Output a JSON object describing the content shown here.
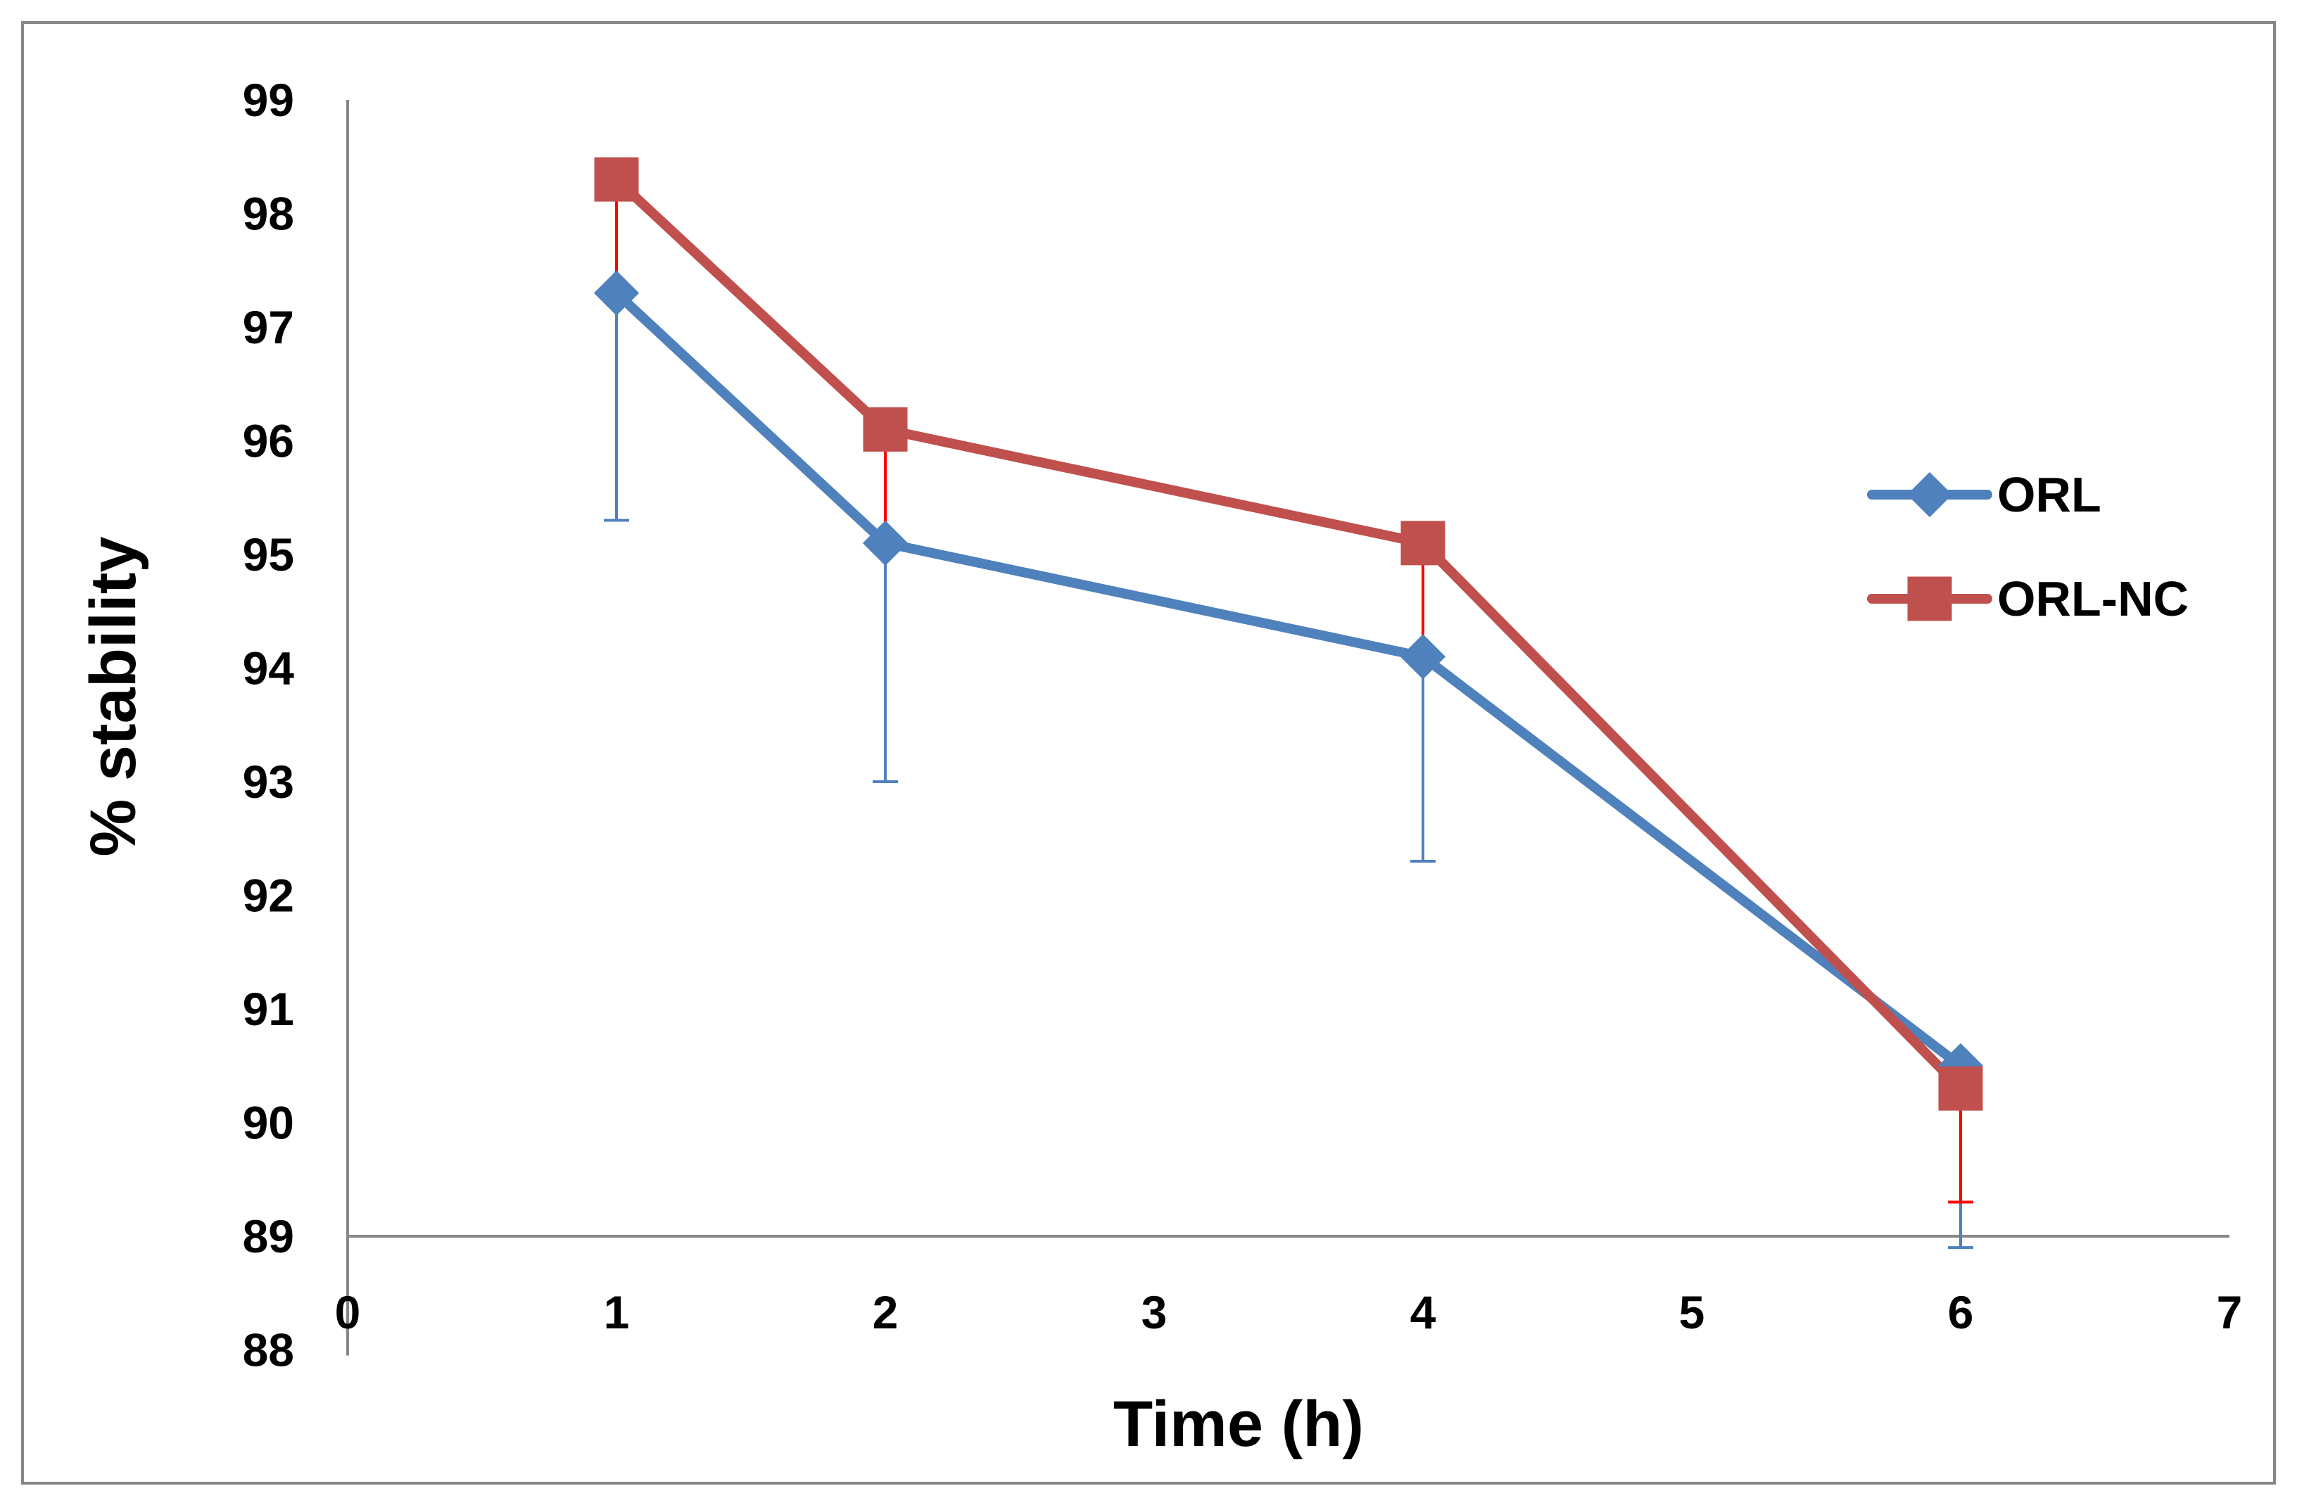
{
  "chart_data": {
    "type": "line",
    "title": "",
    "xlabel": "Time (h)",
    "ylabel": "% stability",
    "x_ticks": [
      "0",
      "1",
      "2",
      "3",
      "4",
      "5",
      "6",
      "7"
    ],
    "y_ticks": [
      "88",
      "89",
      "90",
      "91",
      "92",
      "93",
      "94",
      "95",
      "96",
      "97",
      "98",
      "99"
    ],
    "ylim": [
      88,
      99
    ],
    "x_crosses_y_at": 89,
    "grid": false,
    "legend_position": "right",
    "categories": [
      "1",
      "2",
      "4",
      "6"
    ],
    "category_positions": [
      1,
      2,
      4,
      6
    ],
    "series": [
      {
        "name": "ORL",
        "values": [
          97.3,
          95.1,
          94.1,
          90.5
        ],
        "error_minus": [
          2.0,
          2.1,
          1.8,
          1.6
        ],
        "color": "#4f81bd",
        "error_color": "#4f81bd",
        "marker": "diamond"
      },
      {
        "name": "ORL-NC",
        "values": [
          98.3,
          96.1,
          95.1,
          90.3
        ],
        "error_minus": [
          1.0,
          1.0,
          1.0,
          1.0
        ],
        "color": "#c0504d",
        "error_color": "#ff0000",
        "marker": "square"
      }
    ]
  }
}
